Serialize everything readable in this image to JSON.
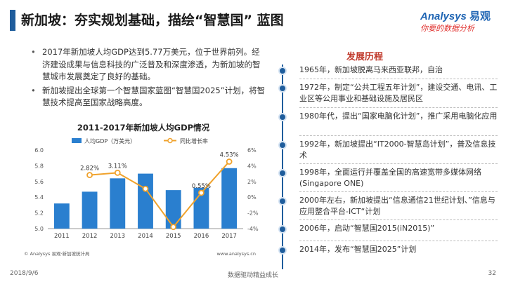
{
  "header": {
    "title": "新加坡：夯实规划基础，描绘“智慧国” 蓝图"
  },
  "logo": {
    "en": "Analysys",
    "cn": "易观",
    "slogan": "你要的数据分析"
  },
  "bullets": [
    "2017年新加坡人均GDP达到5.77万美元，位于世界前列。经济建设成果与信息科技的广泛普及和深度渗透，为新加坡的智慧城市发展奠定了良好的基础。",
    "新加坡提出全球第一个智慧国家蓝图“智慧国2025”计划，将智慧技术提高至国家战略高度。"
  ],
  "chart_data": {
    "type": "bar",
    "title": "2011-2017年新加坡人均GDP情况",
    "categories": [
      "2011",
      "2012",
      "2013",
      "2014",
      "2015",
      "2016",
      "2017"
    ],
    "series": [
      {
        "name": "人均GDP（万美元）",
        "type": "bar",
        "axis": "left",
        "values": [
          5.32,
          5.47,
          5.64,
          5.7,
          5.49,
          5.52,
          5.77
        ]
      },
      {
        "name": "同比增长率",
        "type": "line",
        "axis": "right",
        "values": [
          null,
          2.82,
          3.11,
          1.07,
          -3.79,
          0.55,
          4.53
        ],
        "labels": [
          "",
          "2.82%",
          "3.11%",
          "",
          "",
          "0.55%",
          "4.53%"
        ]
      }
    ],
    "ylim": [
      5.0,
      6.0
    ],
    "yticks": [
      "5.0",
      "5.2",
      "5.4",
      "5.6",
      "5.8",
      "6.0"
    ],
    "y2lim": [
      -4,
      6
    ],
    "y2ticks": [
      "-4%",
      "-2%",
      "0%",
      "2%",
      "4%",
      "6%"
    ],
    "legend": "top",
    "colors": {
      "bar": "#2a7fcf",
      "line": "#f0a22b",
      "marker": "#ffffff"
    },
    "source_left": "© Analysys 易观·新加坡统计局",
    "source_right": "www.analysys.cn"
  },
  "history": {
    "title": "发展历程",
    "events": [
      "1965年，新加坡脱离马来西亚联邦，自治",
      "1972年，制定“公共工程五年计划”，建设交通、电讯、工业区等公用事业和基础设施及居民区",
      "1980年代，提出“国家电脑化计划”，推广采用电脑化应用",
      "1992年，新加坡提出“IT2000-智慧岛计划”，普及信息技术",
      "1998年，全面运行并覆盖全国的高速宽带多媒体网络(Singapore ONE)",
      "2000年左右，新加坡提出“信息通信21世纪计划、”信息与应用整合平台-ICT“计划",
      "2006年，启动“智慧国2015(iN2015)”",
      "2014年，发布“智慧国2025”计划"
    ]
  },
  "footer": {
    "date": "2018/9/6",
    "center": "数据驱动精益成长",
    "page": "32"
  }
}
